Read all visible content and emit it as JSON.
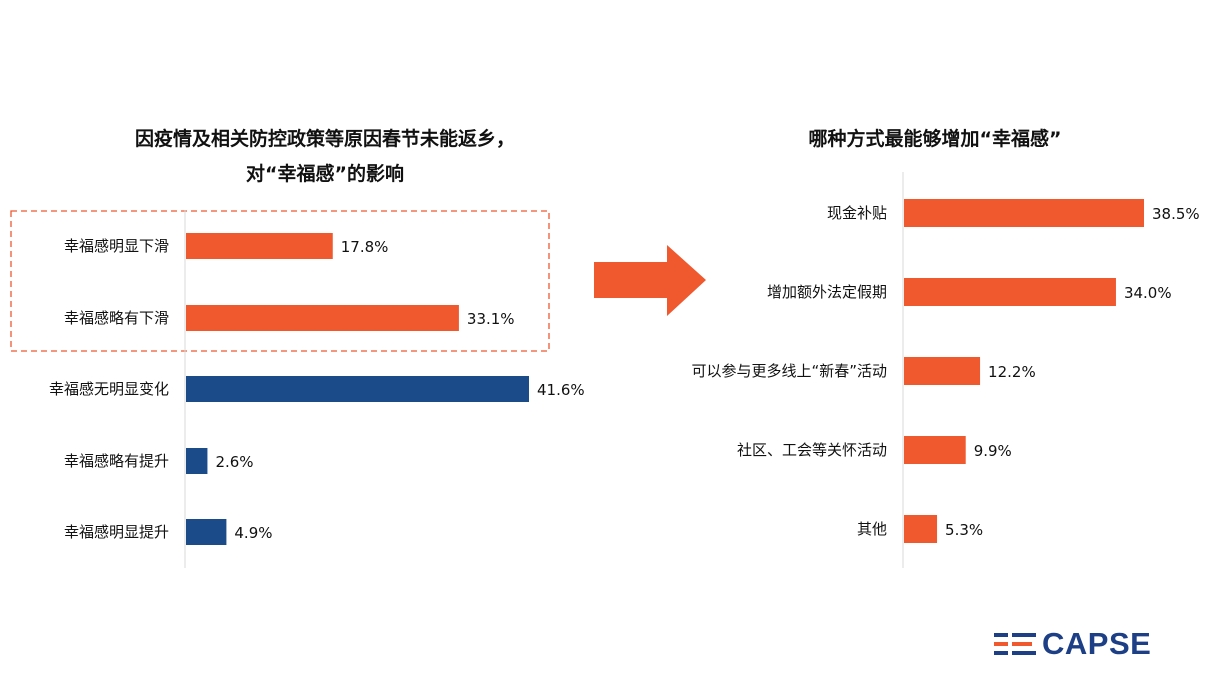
{
  "colors": {
    "orange": "#f0582e",
    "navy": "#1c4b8a",
    "axis": "#d9d9d9",
    "dashed": "#f0582e",
    "logo_navy": "#1c3f86",
    "logo_orange": "#f0582e"
  },
  "logo": {
    "text": "CAPSE",
    "icon": "logo-lines-icon"
  },
  "arrow": {
    "icon": "arrow-right-icon"
  },
  "chart_data": [
    {
      "type": "bar",
      "orientation": "horizontal",
      "title_lines": [
        "因疫情及相关防控政策等原因春节未能返乡，",
        "对“幸福感”的影响"
      ],
      "categories": [
        "幸福感明显下滑",
        "幸福感略有下滑",
        "幸福感无明显变化",
        "幸福感略有提升",
        "幸福感明显提升"
      ],
      "values": [
        17.8,
        33.1,
        41.6,
        2.6,
        4.9
      ],
      "value_labels": [
        "17.8%",
        "33.1%",
        "41.6%",
        "2.6%",
        "4.9%"
      ],
      "bar_colors": [
        "#f0582e",
        "#f0582e",
        "#1c4b8a",
        "#1c4b8a",
        "#1c4b8a"
      ],
      "highlighted_categories": [
        "幸福感明显下滑",
        "幸福感略有下滑"
      ],
      "unit": "%"
    },
    {
      "type": "bar",
      "orientation": "horizontal",
      "title_lines": [
        "哪种方式最能够增加“幸福感”"
      ],
      "categories": [
        "现金补贴",
        "增加额外法定假期",
        "可以参与更多线上“新春”活动",
        "社区、工会等关怀活动",
        "其他"
      ],
      "values": [
        38.5,
        34.0,
        12.2,
        9.9,
        5.3
      ],
      "value_labels": [
        "38.5%",
        "34.0%",
        "12.2%",
        "9.9%",
        "5.3%"
      ],
      "bar_colors": [
        "#f0582e",
        "#f0582e",
        "#f0582e",
        "#f0582e",
        "#f0582e"
      ],
      "unit": "%"
    }
  ]
}
